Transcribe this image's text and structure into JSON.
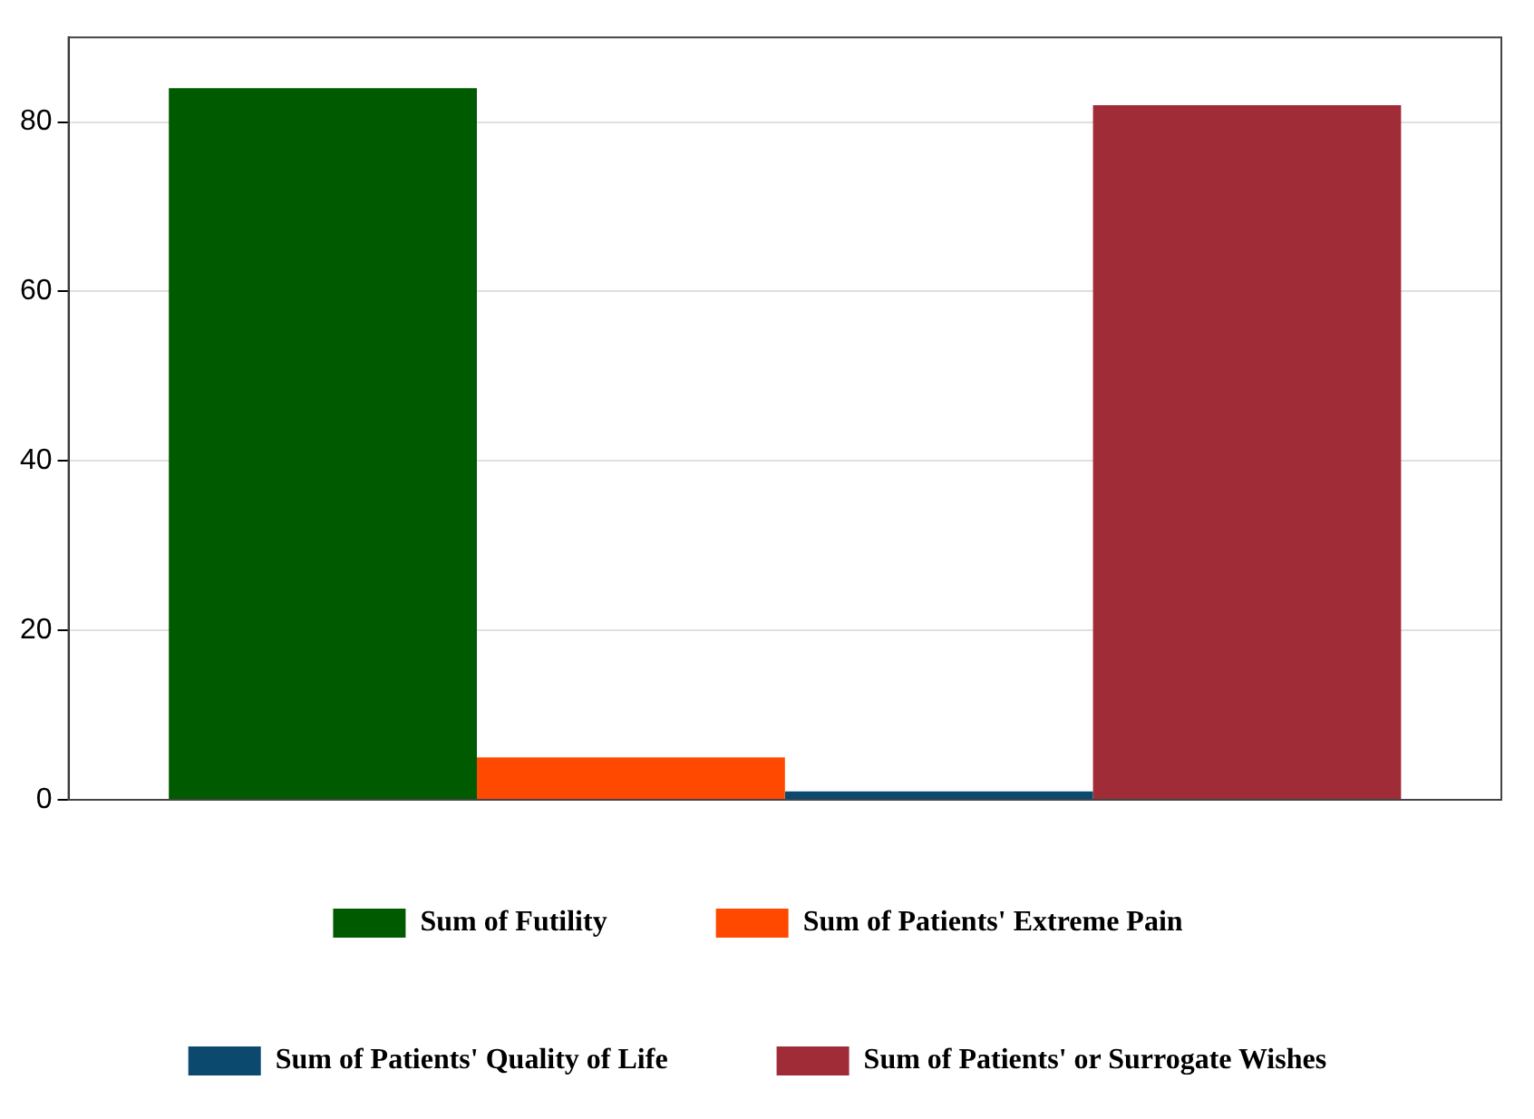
{
  "chart_data": {
    "type": "bar",
    "categories": [
      null
    ],
    "series": [
      {
        "name": "Sum of Futility",
        "color": "#005a00",
        "values": [
          84
        ]
      },
      {
        "name": "Sum of Patients' Extreme Pain",
        "color": "#ff4800",
        "values": [
          5
        ]
      },
      {
        "name": "Sum of Patients' Quality of Life",
        "color": "#0b4a6e",
        "values": [
          1
        ]
      },
      {
        "name": "Sum of Patients' or Surrogate Wishes",
        "color": "#a02c38",
        "values": [
          82
        ]
      }
    ],
    "ylim": [
      0,
      90
    ],
    "yticks": [
      0,
      20,
      40,
      60,
      80
    ],
    "grid": "y",
    "legend": "bottom",
    "tick_labels": "y"
  }
}
